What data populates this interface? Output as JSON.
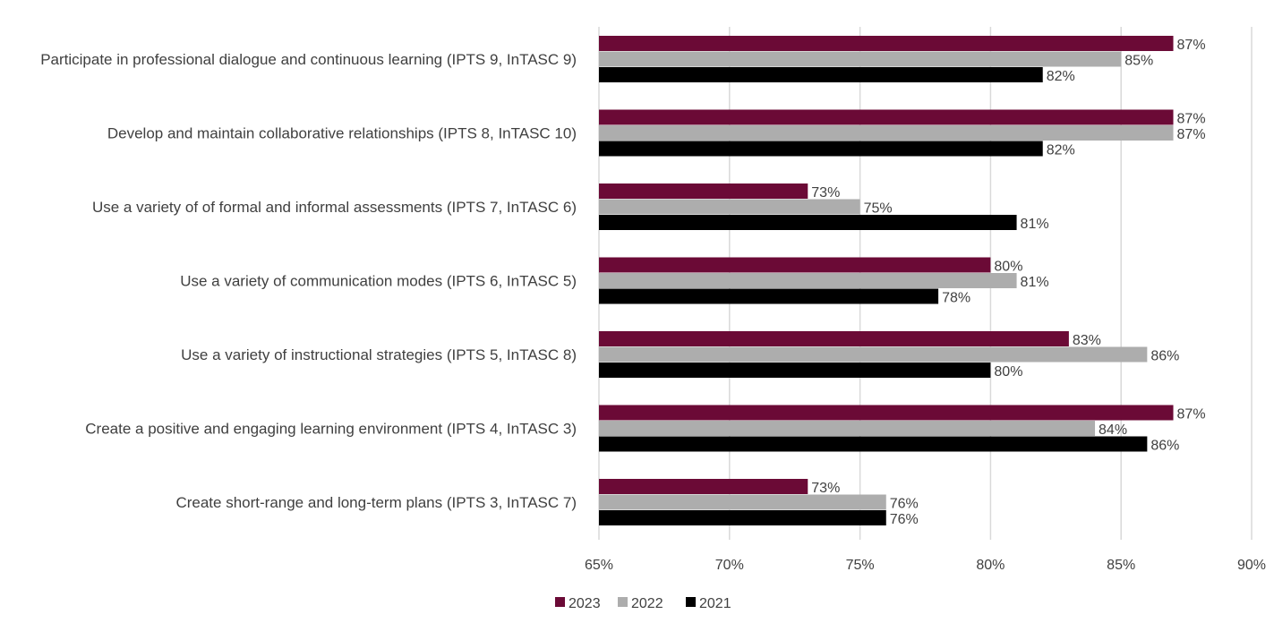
{
  "chart_data": {
    "type": "bar",
    "orientation": "horizontal",
    "categories": [
      "Participate in professional dialogue and continuous learning (IPTS 9, InTASC 9)",
      "Develop and maintain collaborative relationships (IPTS 8, InTASC 10)",
      "Use a variety of of formal and informal assessments (IPTS 7, InTASC 6)",
      "Use a variety of communication modes (IPTS 6, InTASC 5)",
      "Use a variety of instructional strategies (IPTS 5, InTASC 8)",
      "Create a positive and engaging learning environment (IPTS 4, InTASC 3)",
      "Create short-range and long-term plans (IPTS 3, InTASC 7)"
    ],
    "series": [
      {
        "name": "2023",
        "color": "#6b0a36",
        "values": [
          87,
          87,
          73,
          80,
          83,
          87,
          73
        ]
      },
      {
        "name": "2022",
        "color": "#adadad",
        "values": [
          85,
          87,
          75,
          81,
          86,
          84,
          76
        ]
      },
      {
        "name": "2021",
        "color": "#000000",
        "values": [
          82,
          82,
          81,
          78,
          80,
          86,
          76
        ]
      }
    ],
    "xlim": [
      65,
      90
    ],
    "xticks": [
      65,
      70,
      75,
      80,
      85,
      90
    ],
    "tick_suffix": "%",
    "value_suffix": "%",
    "grid": true,
    "legend_position": "bottom-center"
  }
}
